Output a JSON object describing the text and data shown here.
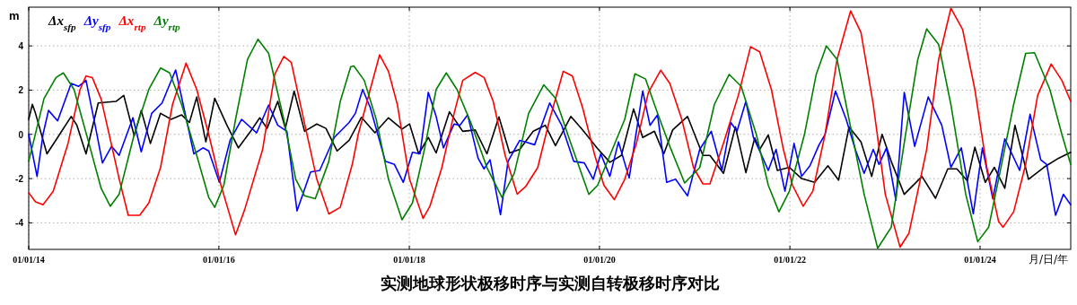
{
  "chart_data": {
    "type": "line",
    "title": "实测地球形状极移时序与实测自转极移时序对比",
    "xlabel": "月/日/年",
    "ylabel": "m",
    "xlim": [
      "2014-01-01",
      "2024-12-14"
    ],
    "ylim": [
      -5.2,
      5.75
    ],
    "xticks": [
      {
        "value": "2014-01-01",
        "label": "01/01/14"
      },
      {
        "value": "2016-01-01",
        "label": "01/01/16"
      },
      {
        "value": "2018-01-01",
        "label": "01/01/18"
      },
      {
        "value": "2020-01-01",
        "label": "01/01/20"
      },
      {
        "value": "2022-01-01",
        "label": "01/01/22"
      },
      {
        "value": "2024-01-01",
        "label": "01/01/24"
      }
    ],
    "yticks": [
      -4,
      -2,
      0,
      2,
      4
    ],
    "grid": true,
    "legend": "top left",
    "marker": "none",
    "line_style": "solid",
    "series": [
      {
        "name": "Δx$_{sfp}$",
        "color": "#000000",
        "x": [
          "2014-01-01",
          "2014-01-15",
          "2014-01-27",
          "2014-03-12",
          "2014-04-22",
          "2014-06-13",
          "2014-07-05",
          "2014-08-09",
          "2014-09-25",
          "2014-12-02",
          "2015-01-01",
          "2015-02-10",
          "2015-03-09",
          "2015-04-13",
          "2015-05-22",
          "2015-07-02",
          "2015-08-11",
          "2015-09-10",
          "2015-10-08",
          "2015-11-12",
          "2015-12-16",
          "2016-02-01",
          "2016-03-16",
          "2016-05-02",
          "2016-06-06",
          "2016-07-04",
          "2016-08-14",
          "2016-09-12",
          "2016-10-16",
          "2016-11-25",
          "2017-01-11",
          "2017-02-15",
          "2017-03-30",
          "2017-05-15",
          "2017-07-01",
          "2017-08-22",
          "2017-10-13",
          "2017-12-04",
          "2018-01-02",
          "2018-02-06",
          "2018-03-15",
          "2018-04-14",
          "2018-06-04",
          "2018-07-25",
          "2018-09-11",
          "2018-10-26",
          "2018-12-11",
          "2019-01-21",
          "2019-03-01",
          "2019-04-22",
          "2019-06-07",
          "2019-07-16",
          "2019-09-13",
          "2019-10-28",
          "2019-12-25",
          "2020-02-10",
          "2020-03-25",
          "2020-05-11",
          "2020-06-15",
          "2020-07-30",
          "2020-09-04",
          "2020-10-08",
          "2020-12-04",
          "2021-02-01",
          "2021-02-28",
          "2021-04-21",
          "2021-06-06",
          "2021-07-16",
          "2021-08-19",
          "2021-09-07",
          "2021-10-10",
          "2021-11-14",
          "2021-12-30",
          "2022-02-15",
          "2022-04-06",
          "2022-05-27",
          "2022-07-07",
          "2022-08-16",
          "2022-10-01",
          "2022-11-11",
          "2022-12-21",
          "2023-01-25",
          "2023-03-16",
          "2023-05-23",
          "2023-07-14",
          "2023-08-30",
          "2023-10-04",
          "2023-11-13",
          "2023-12-12",
          "2024-01-21",
          "2024-02-25",
          "2024-04-05",
          "2024-05-14",
          "2024-07-05",
          "2024-09-02",
          "2024-10-28",
          "2024-12-14"
        ],
        "values": [
          0.68,
          1.36,
          0.95,
          -0.88,
          -0.14,
          0.81,
          0.41,
          -0.88,
          1.42,
          1.49,
          1.76,
          -0.07,
          1.08,
          -0.41,
          0.95,
          0.68,
          0.88,
          0.54,
          1.69,
          -0.34,
          1.63,
          0.41,
          -0.61,
          0.14,
          0.75,
          0.27,
          1.49,
          0.27,
          1.96,
          0.14,
          0.47,
          0.27,
          -0.75,
          -0.27,
          0.77,
          0.07,
          0.75,
          0.24,
          0.47,
          -0.88,
          -0.14,
          -0.84,
          1.02,
          0.14,
          0.2,
          -0.88,
          0.79,
          -0.84,
          -0.68,
          0.14,
          0.41,
          -0.51,
          0.81,
          0.2,
          -0.65,
          -1.26,
          -0.95,
          1.15,
          -0.14,
          0.14,
          -0.88,
          0.2,
          0.81,
          -0.95,
          -0.95,
          -1.76,
          0.34,
          -1.73,
          -0.16,
          -0.68,
          -0.03,
          -1.63,
          -1.49,
          -2.0,
          -2.17,
          -1.42,
          -2.07,
          0.34,
          -0.34,
          -1.9,
          0,
          -1.22,
          -2.71,
          -1.9,
          -2.89,
          -1.56,
          -1.56,
          -2.1,
          -0.58,
          -2.17,
          -1.49,
          -2.44,
          0.41,
          -2.03,
          -1.49,
          -1.08,
          -0.81
        ]
      },
      {
        "name": "Δy$_{sfp}$",
        "color": "#0000ff",
        "x": [
          "2014-01-01",
          "2014-02-02",
          "2014-02-25",
          "2014-03-18",
          "2014-04-22",
          "2014-06-13",
          "2014-07-11",
          "2014-08-09",
          "2014-09-13",
          "2014-10-11",
          "2014-11-15",
          "2014-12-14",
          "2015-02-05",
          "2015-03-09",
          "2015-04-18",
          "2015-05-28",
          "2015-07-19",
          "2015-08-17",
          "2015-09-27",
          "2015-11-01",
          "2015-11-23",
          "2016-01-03",
          "2016-02-13",
          "2016-03-28",
          "2016-05-25",
          "2016-07-10",
          "2016-08-14",
          "2016-09-18",
          "2016-10-27",
          "2016-12-18",
          "2017-01-22",
          "2017-03-19",
          "2017-05-15",
          "2017-06-08",
          "2017-07-06",
          "2017-08-04",
          "2017-10-01",
          "2017-11-05",
          "2017-12-09",
          "2018-01-13",
          "2018-02-11",
          "2018-03-15",
          "2018-04-14",
          "2018-05-12",
          "2018-06-22",
          "2018-07-14",
          "2018-08-13",
          "2018-09-22",
          "2018-10-15",
          "2018-11-07",
          "2018-12-17",
          "2019-01-15",
          "2019-03-01",
          "2019-03-23",
          "2019-04-27",
          "2019-06-24",
          "2019-08-09",
          "2019-09-24",
          "2019-11-04",
          "2019-12-08",
          "2020-01-06",
          "2020-02-10",
          "2020-03-14",
          "2020-04-24",
          "2020-06-15",
          "2020-07-13",
          "2020-08-11",
          "2020-09-15",
          "2020-10-19",
          "2020-12-04",
          "2021-01-20",
          "2021-03-05",
          "2021-04-15",
          "2021-05-19",
          "2021-06-12",
          "2021-07-16",
          "2021-08-14",
          "2021-09-12",
          "2021-10-10",
          "2021-11-09",
          "2021-12-13",
          "2022-01-17",
          "2022-02-15",
          "2022-03-19",
          "2022-04-23",
          "2022-05-16",
          "2022-06-25",
          "2022-08-05",
          "2022-09-09",
          "2022-10-13",
          "2022-11-17",
          "2022-12-09",
          "2023-01-07",
          "2023-02-12",
          "2023-03-16",
          "2023-04-25",
          "2023-06-16",
          "2023-08-07",
          "2023-09-11",
          "2023-10-21",
          "2023-12-06",
          "2024-01-10",
          "2024-02-19",
          "2024-04-05",
          "2024-06-01",
          "2024-07-11",
          "2024-08-21",
          "2024-09-13",
          "2024-10-17",
          "2024-11-16",
          "2024-12-14"
        ],
        "values": [
          0,
          -1.9,
          0,
          1.08,
          0.61,
          2.3,
          2.17,
          2.44,
          0.41,
          -1.29,
          -0.54,
          -0.95,
          0.75,
          -0.79,
          0.95,
          1.42,
          2.91,
          1.35,
          -0.88,
          -0.61,
          -0.75,
          -2.17,
          -0.27,
          0.68,
          0.07,
          1.33,
          0.41,
          0.14,
          -3.46,
          -1.7,
          -1.63,
          -0.14,
          0.54,
          0.95,
          2.03,
          1.22,
          -1.22,
          -1.36,
          -2.17,
          -0.81,
          -0.88,
          1.9,
          0.81,
          -0.61,
          0.47,
          0.41,
          0.88,
          -1.08,
          -1.56,
          -1.15,
          -3.63,
          -1.22,
          -0.27,
          -0.34,
          -0.47,
          1.42,
          0.41,
          -1.22,
          -1.29,
          -2.03,
          -0.88,
          -1.9,
          -0.34,
          -1.97,
          1.96,
          0.41,
          0.88,
          -2.17,
          -2.03,
          -2.78,
          -0.68,
          0.14,
          -1.63,
          0.54,
          0.14,
          1.49,
          -0.14,
          -0.88,
          -1.63,
          -0.68,
          -2.57,
          -0.41,
          -1.9,
          -1.42,
          -0.47,
          0,
          1.96,
          0.68,
          -0.68,
          -1.76,
          -0.68,
          -1.36,
          -0.61,
          -2.98,
          1.9,
          -0.54,
          1.69,
          0.41,
          -1.49,
          -0.61,
          -3.59,
          -0.61,
          -2.91,
          -0.2,
          -1.63,
          0.91,
          -1.15,
          -1.36,
          -3.66,
          -2.71,
          -3.18
        ]
      },
      {
        "name": "Δx$_{rtp}$",
        "color": "#ff0000",
        "x": [
          "2014-01-01",
          "2014-01-27",
          "2014-02-25",
          "2014-04-05",
          "2014-06-01",
          "2014-07-17",
          "2014-08-09",
          "2014-09-02",
          "2014-10-06",
          "2014-12-14",
          "2015-01-18",
          "2015-03-03",
          "2015-04-07",
          "2015-05-22",
          "2015-07-07",
          "2015-08-28",
          "2015-10-08",
          "2015-11-23",
          "2016-01-09",
          "2016-03-05",
          "2016-04-09",
          "2016-06-17",
          "2016-08-02",
          "2016-09-06",
          "2016-10-05",
          "2016-11-14",
          "2017-01-11",
          "2017-02-26",
          "2017-04-11",
          "2017-05-27",
          "2017-06-19",
          "2017-08-04",
          "2017-09-09",
          "2017-10-13",
          "2017-11-16",
          "2018-01-02",
          "2018-02-23",
          "2018-03-21",
          "2018-05-06",
          "2018-06-22",
          "2018-07-25",
          "2018-09-11",
          "2018-10-15",
          "2018-11-19",
          "2019-01-04",
          "2019-02-19",
          "2019-03-23",
          "2019-05-09",
          "2019-06-24",
          "2019-08-15",
          "2019-09-19",
          "2019-10-28",
          "2019-12-14",
          "2020-01-18",
          "2020-02-27",
          "2020-04-07",
          "2020-05-22",
          "2020-07-07",
          "2020-08-23",
          "2020-09-27",
          "2020-11-12",
          "2020-12-27",
          "2021-02-01",
          "2021-02-28",
          "2021-04-21",
          "2021-06-17",
          "2021-08-03",
          "2021-09-07",
          "2021-10-22",
          "2021-12-07",
          "2022-01-11",
          "2022-02-21",
          "2022-03-30",
          "2022-05-16",
          "2022-07-01",
          "2022-08-22",
          "2022-10-01",
          "2022-11-17",
          "2023-01-02",
          "2023-02-28",
          "2023-04-03",
          "2023-06-10",
          "2023-07-26",
          "2023-09-11",
          "2023-10-26",
          "2023-12-12",
          "2024-01-27",
          "2024-03-12",
          "2024-03-29",
          "2024-05-09",
          "2024-06-24",
          "2024-08-09",
          "2024-09-30",
          "2024-11-10",
          "2024-12-14"
        ],
        "values": [
          -2.64,
          -3.05,
          -3.18,
          -2.57,
          -0.4,
          2.03,
          2.64,
          2.57,
          1.6,
          -2.0,
          -3.66,
          -3.66,
          -3.1,
          -1.5,
          1.35,
          3.22,
          2.03,
          0,
          -2.3,
          -4.54,
          -3.4,
          -0.68,
          2.7,
          3.52,
          3.25,
          1.08,
          -2.03,
          -3.6,
          -3.3,
          -1.36,
          0,
          2.03,
          3.6,
          2.85,
          1.35,
          -2.03,
          -3.8,
          -3.25,
          -1.5,
          0.95,
          2.44,
          2.8,
          2.57,
          1.49,
          -0.95,
          -2.7,
          -2.37,
          -1.5,
          0.68,
          2.85,
          2.64,
          1.22,
          -0.95,
          -2.3,
          -2.95,
          -2.03,
          -0.4,
          1.9,
          2.9,
          2.3,
          0.68,
          -1.5,
          -2.24,
          -2.24,
          -0.4,
          1.76,
          3.96,
          3.73,
          2.03,
          -0.68,
          -2.3,
          -3.25,
          -2.57,
          0,
          3.39,
          5.58,
          4.6,
          1.35,
          -2.7,
          -5.1,
          -4.47,
          -0.68,
          3.39,
          5.7,
          4.74,
          2.03,
          -1.5,
          -3.93,
          -4.2,
          -3.5,
          -1.36,
          1.76,
          3.18,
          2.44,
          1.49
        ]
      },
      {
        "name": "Δy$_{rtp}$",
        "color": "#008000",
        "x": [
          "2014-01-01",
          "2014-03-01",
          "2014-04-16",
          "2014-05-14",
          "2014-06-24",
          "2014-08-20",
          "2014-10-06",
          "2014-11-10",
          "2014-12-14",
          "2015-02-10",
          "2015-04-07",
          "2015-05-22",
          "2015-06-26",
          "2015-08-11",
          "2015-10-08",
          "2015-11-23",
          "2015-12-16",
          "2016-01-20",
          "2016-03-05",
          "2016-04-20",
          "2016-05-30",
          "2016-07-10",
          "2016-09-06",
          "2016-10-22",
          "2016-11-25",
          "2017-01-05",
          "2017-02-26",
          "2017-04-11",
          "2017-05-21",
          "2017-06-02",
          "2017-07-12",
          "2017-08-27",
          "2017-10-13",
          "2017-12-04",
          "2018-01-13",
          "2018-02-28",
          "2018-04-14",
          "2018-05-23",
          "2018-07-03",
          "2018-08-29",
          "2018-10-26",
          "2018-12-23",
          "2019-02-08",
          "2019-04-04",
          "2019-06-01",
          "2019-07-16",
          "2019-09-13",
          "2019-11-21",
          "2019-12-25",
          "2020-02-10",
          "2020-04-07",
          "2020-05-16",
          "2020-06-26",
          "2020-08-11",
          "2020-09-27",
          "2020-11-23",
          "2021-01-20",
          "2021-03-17",
          "2021-05-13",
          "2021-06-28",
          "2021-08-25",
          "2021-10-10",
          "2021-11-20",
          "2021-12-30",
          "2022-02-26",
          "2022-04-12",
          "2022-05-21",
          "2022-07-01",
          "2022-08-16",
          "2022-10-13",
          "2022-12-04",
          "2023-01-25",
          "2023-03-21",
          "2023-05-07",
          "2023-06-10",
          "2023-07-26",
          "2023-09-11",
          "2023-11-07",
          "2023-12-23",
          "2024-02-03",
          "2024-03-12",
          "2024-05-09",
          "2024-06-24",
          "2024-07-28",
          "2024-09-25",
          "2024-11-10",
          "2024-12-14"
        ],
        "values": [
          -1.22,
          1.63,
          2.57,
          2.78,
          2.03,
          -0.4,
          -2.44,
          -3.25,
          -2.71,
          0,
          2.03,
          3.0,
          2.78,
          1.35,
          -0.95,
          -2.85,
          -3.3,
          -2.3,
          0.68,
          3.39,
          4.3,
          3.66,
          0.68,
          -2.03,
          -2.78,
          -2.91,
          -1.22,
          1.49,
          3.05,
          3.09,
          2.44,
          0.68,
          -2.03,
          -3.86,
          -3.1,
          -0.68,
          2.03,
          2.78,
          2.03,
          0.41,
          -1.5,
          -2.85,
          -1.76,
          0.95,
          2.24,
          1.63,
          -0.4,
          -2.71,
          -2.3,
          -0.95,
          0.68,
          2.74,
          2.5,
          0.95,
          -0.54,
          -2.2,
          -1.5,
          1.35,
          2.71,
          2.17,
          0,
          -2.3,
          -3.5,
          -2.57,
          0,
          2.71,
          4.0,
          3.39,
          0.68,
          -2.71,
          -5.15,
          -4.2,
          0,
          3.39,
          4.77,
          4.07,
          1.35,
          -2.71,
          -4.85,
          -4.2,
          -2.03,
          1.35,
          3.66,
          3.69,
          2.03,
          0,
          -1.36
        ]
      }
    ]
  }
}
